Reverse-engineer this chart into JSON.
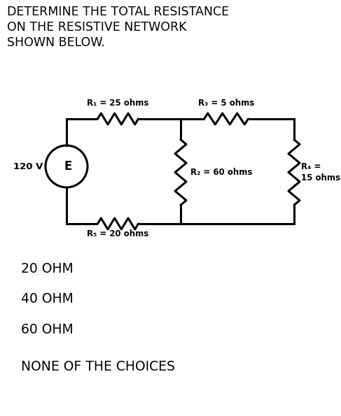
{
  "title_lines": [
    "DETERMINE THE TOTAL RESISTANCE",
    "ON THE RESISTIVE NETWORK",
    "SHOWN BELOW."
  ],
  "title_fontsize": 12.5,
  "title_fontweight": "normal",
  "choices": [
    "20 OHM",
    "40 OHM",
    "60 OHM",
    "NONE OF THE CHOICES"
  ],
  "choices_fontsize": 13.5,
  "choices_fontweight": "normal",
  "bg_color": "#ffffff",
  "circuit_color": "#000000",
  "lw": 2.2,
  "r1_label": "R₁ = 25 ohms",
  "r2_label": "R₂ = 60 ohms",
  "r3_label": "R₃ = 5 ohms",
  "r4_label": "R₄ =\n15 ohms",
  "r5_label": "R₅ = 20 ohms",
  "source_label": "120 V",
  "source_letter": "E",
  "label_fontsize": 8.5,
  "label_fontweight": "bold",
  "source_fontsize": 9.5,
  "e_fontsize": 12
}
